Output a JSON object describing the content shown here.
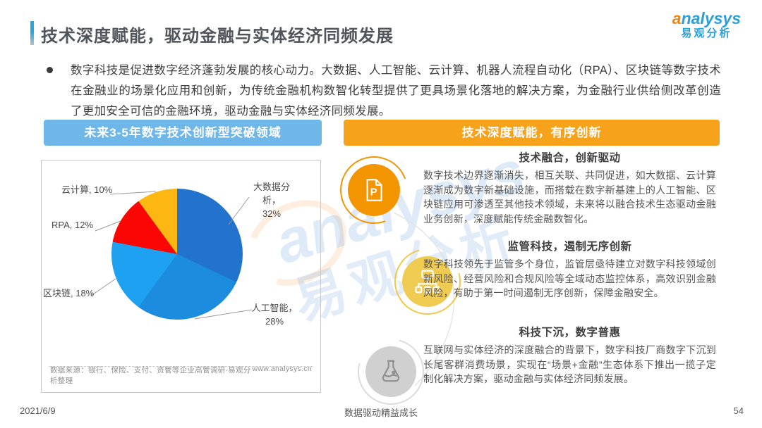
{
  "header": {
    "title": "技术深度赋能，驱动金融与实体经济同频发展"
  },
  "logo": {
    "brand_latin_head": "a",
    "brand_latin_tail": "nalysys",
    "brand_cn": "易观分析"
  },
  "intro": {
    "text": "数字科技是促进数字经济蓬勃发展的核心动力。大数据、人工智能、云计算、机器人流程自动化（RPA）、区块链等数字技术在金融业的场景化应用和创新，为传统金融机构数智化转型提供了更具场景化落地的解决方案，为金融行业供给侧改革创造了更加安全可信的金融环境，驱动金融与实体经济同频发展。"
  },
  "left_panel": {
    "header": "未来3-5年数字技术创新型突破领域",
    "header_bg": "#6FB6E9",
    "source": "数据来源：银行、保险、支付、资管等企业高管调研·易观分析整理",
    "website": "www.analysys.cn"
  },
  "chart_data": {
    "type": "pie",
    "title": "未来3-5年数字技术创新型突破领域",
    "labels": [
      "大数据分析",
      "人工智能",
      "区块链",
      "RPA",
      "云计算"
    ],
    "values": [
      32,
      28,
      18,
      12,
      10
    ],
    "unit": "%",
    "colors": [
      "#2273CE",
      "#1B8CDE",
      "#1FA1F1",
      "#FB0703",
      "#FDB713"
    ],
    "start_angle_deg": 0,
    "direction": "clockwise",
    "legend_position": "callout-labels"
  },
  "right_panel": {
    "header": "技术深度赋能，有序创新",
    "header_bg": "#F7A21B",
    "sections": [
      {
        "icon": "document-p-icon",
        "title": "技术融合，创新驱动",
        "body": "数字技术边界逐渐消失，相互关联、共同促进，如大数据、云计算逐渐成为数字新基础设施，而搭载在数字新基建上的人工智能、区块链应用可渗透至其他技术领域，未来将以融合技术生态驱动金融业务创新，深度赋能传统金融数智化。"
      },
      {
        "icon": "org-chart-icon",
        "title": "监管科技，遏制无序创新",
        "body": "数字科技领先于监管多个身位，监管层亟待建立对数字科技领域创新风险、经营风险和合规风险等全域动态监控体系，高效识别金融风险，有助于第一时间遏制无序创新，保障金融安全。"
      },
      {
        "icon": "flask-icon",
        "title": "科技下沉，数字普惠",
        "body": "互联网与实体经济的深度融合的背景下，数字科技厂商数字下沉到长尾客群消费场景，实现在“场景+金融”生态体系下推出一揽子定制化解决方案，驱动金融与实体经济同频发展。"
      }
    ],
    "icon_colors": [
      "#F39501",
      "#F0CB52",
      "#D0D0D0"
    ]
  },
  "watermark": {
    "text_latin": "analysys",
    "text_cn": "易观分析"
  },
  "footer": {
    "date": "2021/6/9",
    "slogan": "数据驱动精益成长",
    "page": "54"
  }
}
